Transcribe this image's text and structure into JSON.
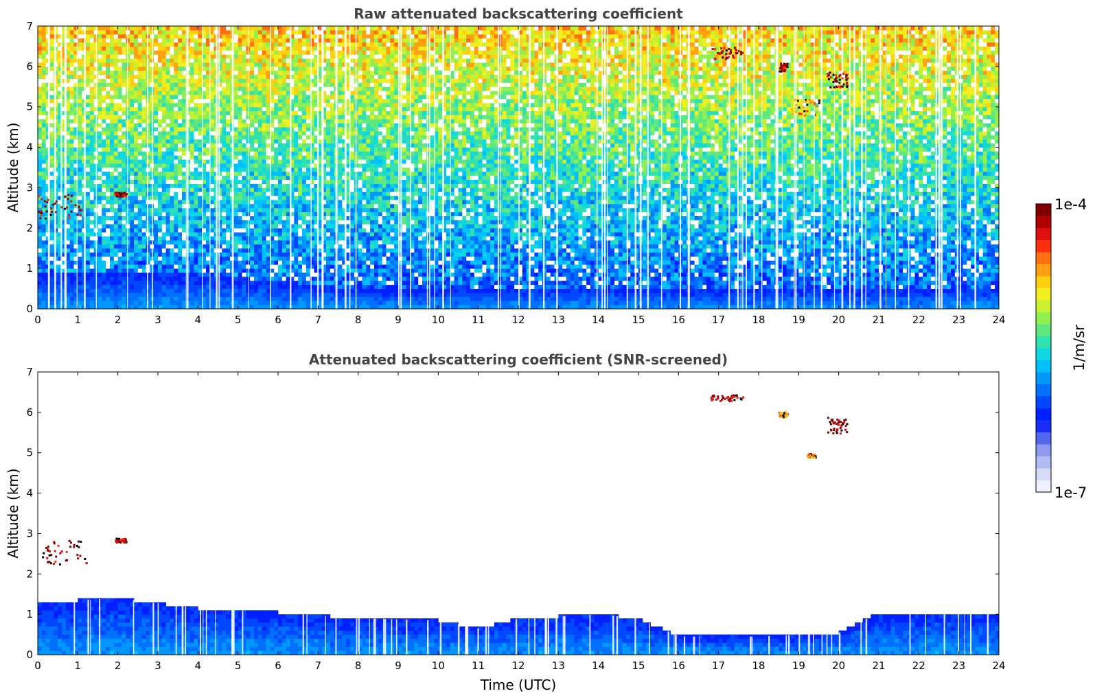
{
  "chart_data": [
    {
      "type": "heatmap",
      "title": "Raw attenuated backscattering coefficient",
      "xlabel": "",
      "ylabel": "Altitude (km)",
      "xlim": [
        0,
        24
      ],
      "ylim": [
        0,
        7
      ],
      "x_ticks": [
        "0",
        "1",
        "2",
        "3",
        "4",
        "5",
        "6",
        "7",
        "8",
        "9",
        "10",
        "11",
        "12",
        "13",
        "14",
        "15",
        "16",
        "17",
        "18",
        "19",
        "20",
        "21",
        "22",
        "23",
        "24"
      ],
      "y_ticks": [
        "0",
        "1",
        "2",
        "3",
        "4",
        "5",
        "6",
        "7"
      ],
      "boundary_layer_top_km": [
        [
          0,
          0.9
        ],
        [
          2,
          0.9
        ],
        [
          4,
          0.85
        ],
        [
          6,
          0.7
        ],
        [
          8,
          0.5
        ],
        [
          10,
          0.45
        ],
        [
          12,
          0.5
        ],
        [
          14,
          0.55
        ],
        [
          16,
          0.5
        ],
        [
          18,
          0.5
        ],
        [
          20,
          0.5
        ],
        [
          22,
          0.45
        ],
        [
          24,
          0.55
        ]
      ],
      "cloud_features": [
        {
          "x": [
            0,
            1.2
          ],
          "y": [
            2.25,
            2.85
          ],
          "level": "high"
        },
        {
          "x": [
            1.9,
            2.2
          ],
          "y": [
            2.8,
            2.9
          ],
          "level": "high"
        },
        {
          "x": [
            16.8,
            17.6
          ],
          "y": [
            6.2,
            6.5
          ],
          "level": "high"
        },
        {
          "x": [
            18.5,
            18.7
          ],
          "y": [
            5.9,
            6.1
          ],
          "level": "high"
        },
        {
          "x": [
            18.8,
            19.5
          ],
          "y": [
            4.8,
            5.2
          ],
          "level": "medium"
        },
        {
          "x": [
            19.7,
            20.2
          ],
          "y": [
            5.5,
            5.9
          ],
          "level": "high"
        }
      ]
    },
    {
      "type": "heatmap",
      "title": "Attenuated backscattering coefficient (SNR-screened)",
      "xlabel": "Time (UTC)",
      "ylabel": "Altitude (km)",
      "xlim": [
        0,
        24
      ],
      "ylim": [
        0,
        7
      ],
      "x_ticks": [
        "0",
        "1",
        "2",
        "3",
        "4",
        "5",
        "6",
        "7",
        "8",
        "9",
        "10",
        "11",
        "12",
        "13",
        "14",
        "15",
        "16",
        "17",
        "18",
        "19",
        "20",
        "21",
        "22",
        "23",
        "24"
      ],
      "y_ticks": [
        "0",
        "1",
        "2",
        "3",
        "4",
        "5",
        "6",
        "7"
      ],
      "boundary_layer_top_km": [
        [
          0,
          1.3
        ],
        [
          2,
          1.4
        ],
        [
          4,
          1.15
        ],
        [
          6,
          1.05
        ],
        [
          8,
          0.9
        ],
        [
          10,
          0.85
        ],
        [
          11,
          0.65
        ],
        [
          12,
          0.9
        ],
        [
          14,
          1.0
        ],
        [
          15,
          0.9
        ],
        [
          16,
          0.45
        ],
        [
          18,
          0.45
        ],
        [
          20,
          0.55
        ],
        [
          21,
          1.05
        ],
        [
          22,
          1.05
        ],
        [
          24,
          1.05
        ]
      ],
      "cloud_features": [
        {
          "x": [
            0,
            1.2
          ],
          "y": [
            2.25,
            2.85
          ],
          "level": "high"
        },
        {
          "x": [
            1.9,
            2.2
          ],
          "y": [
            2.8,
            2.9
          ],
          "level": "high"
        },
        {
          "x": [
            16.8,
            17.6
          ],
          "y": [
            6.3,
            6.45
          ],
          "level": "high"
        },
        {
          "x": [
            18.5,
            18.7
          ],
          "y": [
            5.9,
            6.05
          ],
          "level": "medium"
        },
        {
          "x": [
            19.2,
            19.4
          ],
          "y": [
            4.9,
            5.0
          ],
          "level": "medium"
        },
        {
          "x": [
            19.7,
            20.2
          ],
          "y": [
            5.5,
            5.9
          ],
          "level": "high"
        }
      ]
    }
  ],
  "colorbar": {
    "max_label": "1e-4",
    "min_label": "1e-7",
    "label": "1/m/sr",
    "scale": "log",
    "colors": [
      "#eef0fb",
      "#d6dbf7",
      "#b3bcf2",
      "#8c99ee",
      "#5566f0",
      "#1a2cf5",
      "#0020ff",
      "#0048ff",
      "#0070ff",
      "#0098ff",
      "#00c0ff",
      "#10d8e0",
      "#30e0b0",
      "#60e880",
      "#90f050",
      "#c8f030",
      "#f0f020",
      "#ffd010",
      "#ffa010",
      "#ff7010",
      "#ff3010",
      "#e01010",
      "#b00000",
      "#800000"
    ]
  }
}
